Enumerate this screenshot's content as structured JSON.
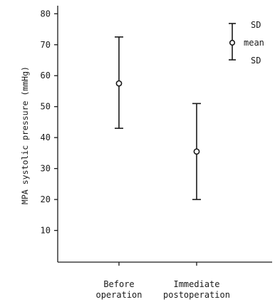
{
  "chart_data": {
    "type": "scatter",
    "categories": [
      "Before\noperation",
      "Immediate\npostoperation"
    ],
    "series": [
      {
        "mean": [
          57.5,
          35.5
        ],
        "upper_sd": [
          72.5,
          51
        ],
        "lower_sd": [
          43,
          20
        ]
      }
    ],
    "ylabel": "MPA systolic pressure (mmHg)",
    "yticks": [
      10,
      20,
      30,
      40,
      50,
      60,
      70,
      80
    ],
    "ylim": [
      0,
      82
    ],
    "grid": false,
    "legend": {
      "placement": "top-right",
      "upper_label": "SD",
      "mean_label": "mean",
      "lower_label": "SD"
    }
  }
}
